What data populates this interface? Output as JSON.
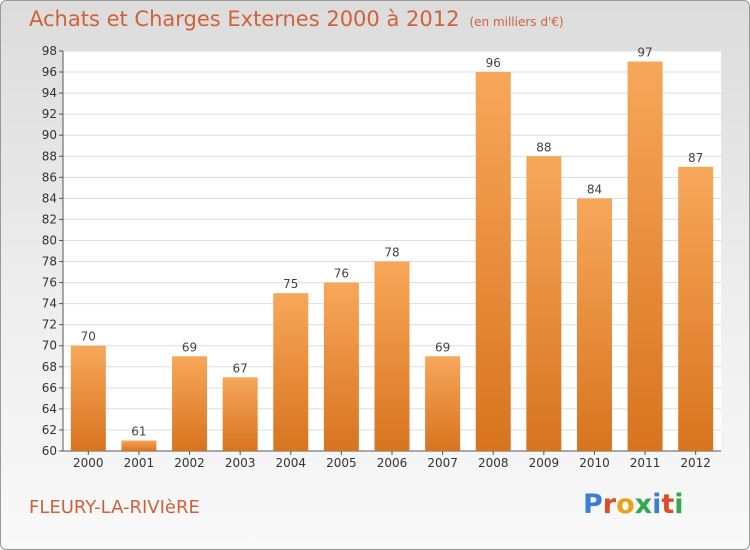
{
  "header": {
    "title": "Achats et Charges Externes 2000 à 2012",
    "subtitle": "(en milliers d'€)"
  },
  "footer": {
    "place": "FLEURY-LA-RIVIèRE",
    "brand": "Proxiti"
  },
  "colors": {
    "title": "#d0623a",
    "bar_light": "#f7a75a",
    "bar_dark": "#d8741f",
    "logo_letters": [
      "#3b7fd4",
      "#e04b2a",
      "#e8a21a",
      "#2fa84f",
      "#3b7fd4",
      "#e04b2a",
      "#2fa84f"
    ]
  },
  "chart_data": {
    "type": "bar",
    "categories": [
      "2000",
      "2001",
      "2002",
      "2003",
      "2004",
      "2005",
      "2006",
      "2007",
      "2008",
      "2009",
      "2010",
      "2011",
      "2012"
    ],
    "values": [
      70,
      61,
      69,
      67,
      75,
      76,
      78,
      69,
      96,
      88,
      84,
      97,
      87
    ],
    "title": "Achats et Charges Externes 2000 à 2012",
    "subtitle": "(en milliers d'€)",
    "ylim": [
      60,
      98
    ],
    "yticks": [
      60,
      62,
      64,
      66,
      68,
      70,
      72,
      74,
      76,
      78,
      80,
      82,
      84,
      86,
      88,
      90,
      92,
      94,
      96,
      98
    ],
    "grid": true,
    "legend": "none"
  }
}
